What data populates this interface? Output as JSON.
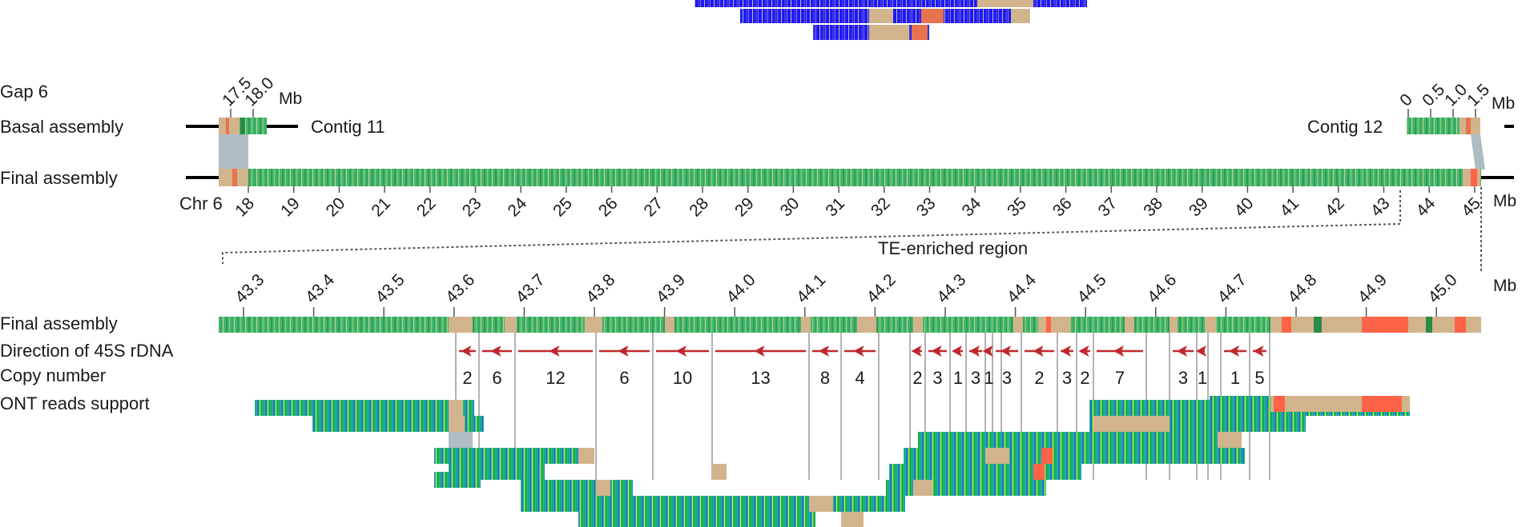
{
  "figure": {
    "gap_label": "Gap 6",
    "row_labels": {
      "basal": "Basal assembly",
      "final": "Final assembly",
      "final_zoom": "Final assembly",
      "direction": "Direction of 45S rDNA",
      "copy": "Copy number",
      "ont": "ONT reads support"
    },
    "contig_left": "Contig 11",
    "contig_right": "Contig 12",
    "chr_label": "Chr 6",
    "unit": "Mb",
    "region_label": "TE-enriched region",
    "contig11_ticks": [
      "17.5",
      "18.0"
    ],
    "contig12_ticks": [
      "0",
      "0.5",
      "1.0",
      "1.5"
    ],
    "chr_ticks": [
      "18",
      "19",
      "20",
      "21",
      "22",
      "23",
      "24",
      "25",
      "26",
      "27",
      "28",
      "29",
      "30",
      "31",
      "32",
      "33",
      "34",
      "35",
      "36",
      "37",
      "38",
      "39",
      "40",
      "41",
      "42",
      "43",
      "44",
      "45"
    ],
    "zoom_ticks": [
      "43.3",
      "43.4",
      "43.5",
      "43.6",
      "43.7",
      "43.8",
      "43.9",
      "44.0",
      "44.1",
      "44.2",
      "44.3",
      "44.4",
      "44.5",
      "44.6",
      "44.7",
      "44.8",
      "44.9",
      "45.0"
    ],
    "copy_numbers": [
      "2",
      "6",
      "12",
      "6",
      "10",
      "13",
      "8",
      "4",
      "2",
      "3",
      "1",
      "3",
      "1",
      "3",
      "2",
      "3",
      "2",
      "7",
      "3",
      "1",
      "1",
      "5"
    ],
    "colors": {
      "green": "#3cb36b",
      "tan": "#d2b48c",
      "red": "#ff6347",
      "blue": "#1a1aff",
      "grey": "#b0bcc4",
      "arrow": "#c0282d"
    }
  }
}
